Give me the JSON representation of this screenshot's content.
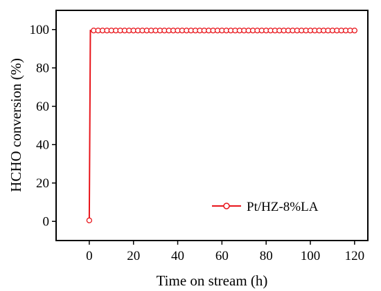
{
  "chart_data": {
    "type": "line",
    "xlabel": "Time on stream (h)",
    "ylabel": "HCHO conversion (%)",
    "xlim": [
      -15,
      126
    ],
    "ylim": [
      -10,
      110
    ],
    "xticks": [
      0,
      20,
      40,
      60,
      80,
      100,
      120
    ],
    "yticks": [
      0,
      20,
      40,
      60,
      80,
      100
    ],
    "xtick_labels": [
      "0",
      "20",
      "40",
      "60",
      "80",
      "100",
      "120"
    ],
    "ytick_labels": [
      "0",
      "20",
      "40",
      "60",
      "80",
      "100"
    ],
    "grid": false,
    "legend": {
      "position": "lower-right"
    },
    "series": [
      {
        "name": "Pt/HZ-8%LA",
        "color": "#e8141a",
        "marker": "open-circle",
        "x": [
          0,
          0.5,
          2,
          4,
          6,
          8,
          10,
          12,
          14,
          16,
          18,
          20,
          22,
          24,
          26,
          28,
          30,
          32,
          34,
          36,
          38,
          40,
          42,
          44,
          46,
          48,
          50,
          52,
          54,
          56,
          58,
          60,
          62,
          64,
          66,
          68,
          70,
          72,
          74,
          76,
          78,
          80,
          82,
          84,
          86,
          88,
          90,
          92,
          94,
          96,
          98,
          100,
          102,
          104,
          106,
          108,
          110,
          112,
          114,
          116,
          118,
          120
        ],
        "y": [
          0.5,
          99.5,
          99.5,
          99.5,
          99.5,
          99.5,
          99.5,
          99.5,
          99.5,
          99.5,
          99.5,
          99.5,
          99.5,
          99.5,
          99.5,
          99.5,
          99.5,
          99.5,
          99.5,
          99.5,
          99.5,
          99.5,
          99.5,
          99.5,
          99.5,
          99.5,
          99.5,
          99.5,
          99.5,
          99.5,
          99.5,
          99.5,
          99.5,
          99.5,
          99.5,
          99.5,
          99.5,
          99.5,
          99.5,
          99.5,
          99.5,
          99.5,
          99.5,
          99.5,
          99.5,
          99.5,
          99.5,
          99.5,
          99.5,
          99.5,
          99.5,
          99.5,
          99.5,
          99.5,
          99.5,
          99.5,
          99.5,
          99.5,
          99.5,
          99.5,
          99.5,
          99.5
        ]
      }
    ]
  }
}
